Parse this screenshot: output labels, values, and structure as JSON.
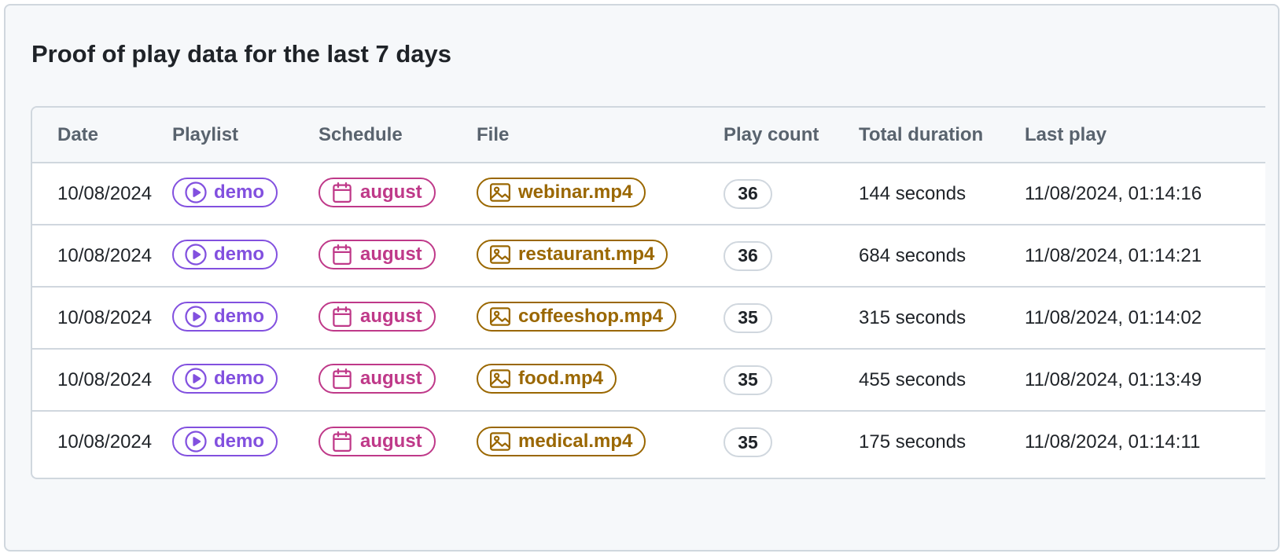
{
  "panel": {
    "title": "Proof of play data for the last 7 days"
  },
  "colors": {
    "playlist": "#8250df",
    "schedule": "#bf3989",
    "file": "#9a6700",
    "border": "#d0d7de",
    "header_text": "#59636e"
  },
  "table": {
    "headers": {
      "date": "Date",
      "playlist": "Playlist",
      "schedule": "Schedule",
      "file": "File",
      "play_count": "Play count",
      "total_duration": "Total duration",
      "last_play": "Last play"
    },
    "icons": {
      "playlist": "play-circle-icon",
      "schedule": "calendar-icon",
      "file": "image-icon"
    },
    "rows": [
      {
        "date": "10/08/2024",
        "playlist": "demo",
        "schedule": "august",
        "file": "webinar.mp4",
        "play_count": "36",
        "total_duration": "144 seconds",
        "last_play": "11/08/2024, 01:14:16"
      },
      {
        "date": "10/08/2024",
        "playlist": "demo",
        "schedule": "august",
        "file": "restaurant.mp4",
        "play_count": "36",
        "total_duration": "684 seconds",
        "last_play": "11/08/2024, 01:14:21"
      },
      {
        "date": "10/08/2024",
        "playlist": "demo",
        "schedule": "august",
        "file": "coffeeshop.mp4",
        "play_count": "35",
        "total_duration": "315 seconds",
        "last_play": "11/08/2024, 01:14:02"
      },
      {
        "date": "10/08/2024",
        "playlist": "demo",
        "schedule": "august",
        "file": "food.mp4",
        "play_count": "35",
        "total_duration": "455 seconds",
        "last_play": "11/08/2024, 01:13:49"
      },
      {
        "date": "10/08/2024",
        "playlist": "demo",
        "schedule": "august",
        "file": "medical.mp4",
        "play_count": "35",
        "total_duration": "175 seconds",
        "last_play": "11/08/2024, 01:14:11"
      }
    ]
  }
}
